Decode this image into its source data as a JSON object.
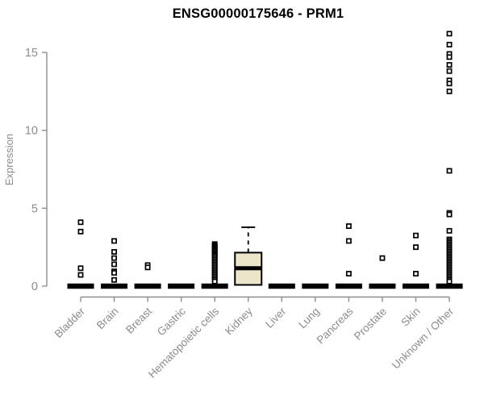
{
  "chart_data": {
    "type": "boxplot",
    "title": "ENSG00000175646 - PRM1",
    "ylabel": "Expression",
    "xlabel": "",
    "ylim": [
      0,
      16.5
    ],
    "yticks": [
      0,
      5,
      10,
      15
    ],
    "grid": "off",
    "legend": "none",
    "categories": [
      "Bladder",
      "Brain",
      "Breast",
      "Gastric",
      "Hematopoietic cells",
      "Kidney",
      "Liver",
      "Lung",
      "Pancreas",
      "Prostate",
      "Skin",
      "Unknown / Other"
    ],
    "series": [
      {
        "category": "Bladder",
        "q1": 0,
        "median": 0,
        "q3": 0,
        "whisker_low": 0,
        "whisker_high": 0,
        "outliers": [
          4.1,
          3.5,
          1.15,
          0.72
        ]
      },
      {
        "category": "Brain",
        "q1": 0,
        "median": 0,
        "q3": 0,
        "whisker_low": 0,
        "whisker_high": 0,
        "outliers": [
          2.9,
          2.2,
          1.8,
          1.4,
          0.95,
          0.85,
          0.4
        ]
      },
      {
        "category": "Breast",
        "q1": 0,
        "median": 0,
        "q3": 0,
        "whisker_low": 0,
        "whisker_high": 0,
        "outliers": [
          1.35,
          1.2
        ]
      },
      {
        "category": "Gastric",
        "q1": 0,
        "median": 0,
        "q3": 0,
        "whisker_low": 0,
        "whisker_high": 0,
        "outliers": []
      },
      {
        "category": "Hematopoietic cells",
        "q1": 0,
        "median": 0,
        "q3": 0,
        "whisker_low": 0,
        "whisker_high": 0,
        "outliers": [
          2.7,
          2.62,
          2.54,
          2.46,
          2.38,
          2.3,
          2.22,
          2.14,
          2.06,
          1.98,
          1.9,
          1.8,
          1.7,
          1.6,
          1.5,
          1.4,
          1.3,
          1.2,
          1.1,
          1.0,
          0.9,
          0.8,
          0.7,
          0.6,
          0.5,
          0.4,
          0.3
        ]
      },
      {
        "category": "Kidney",
        "q1": 0.08,
        "median": 1.15,
        "q3": 2.15,
        "whisker_low": 0.08,
        "whisker_high": 3.78,
        "outliers": []
      },
      {
        "category": "Liver",
        "q1": 0,
        "median": 0,
        "q3": 0,
        "whisker_low": 0,
        "whisker_high": 0,
        "outliers": []
      },
      {
        "category": "Lung",
        "q1": 0,
        "median": 0,
        "q3": 0,
        "whisker_low": 0,
        "whisker_high": 0,
        "outliers": []
      },
      {
        "category": "Pancreas",
        "q1": 0,
        "median": 0,
        "q3": 0,
        "whisker_low": 0,
        "whisker_high": 0,
        "outliers": [
          3.85,
          2.9,
          0.8
        ]
      },
      {
        "category": "Prostate",
        "q1": 0,
        "median": 0,
        "q3": 0,
        "whisker_low": 0,
        "whisker_high": 0,
        "outliers": [
          1.8
        ]
      },
      {
        "category": "Skin",
        "q1": 0,
        "median": 0,
        "q3": 0,
        "whisker_low": 0,
        "whisker_high": 0,
        "outliers": [
          3.25,
          2.5,
          0.8
        ]
      },
      {
        "category": "Unknown / Other",
        "q1": 0,
        "median": 0,
        "q3": 0,
        "whisker_low": 0,
        "whisker_high": 0,
        "outliers": [
          16.2,
          15.5,
          14.9,
          14.7,
          14.2,
          13.8,
          13.2,
          13.0,
          12.5,
          7.4,
          4.7,
          4.6,
          3.55,
          3.0,
          2.9,
          2.8,
          2.7,
          2.6,
          2.5,
          2.4,
          2.3,
          2.2,
          2.1,
          2.0,
          1.9,
          1.8,
          1.7,
          1.6,
          1.5,
          1.4,
          1.3,
          1.2,
          1.1,
          1.0,
          0.9,
          0.8,
          0.7,
          0.6,
          0.5,
          0.4,
          0.3
        ]
      }
    ],
    "colors": {
      "box_fill": "#EBE5CB",
      "box_border": "#000000",
      "median": "#000000",
      "outlier": "#000000",
      "axis": "#8e8e8e",
      "text": "#8c8c8c",
      "title": "#000000",
      "background": "#ffffff"
    }
  }
}
